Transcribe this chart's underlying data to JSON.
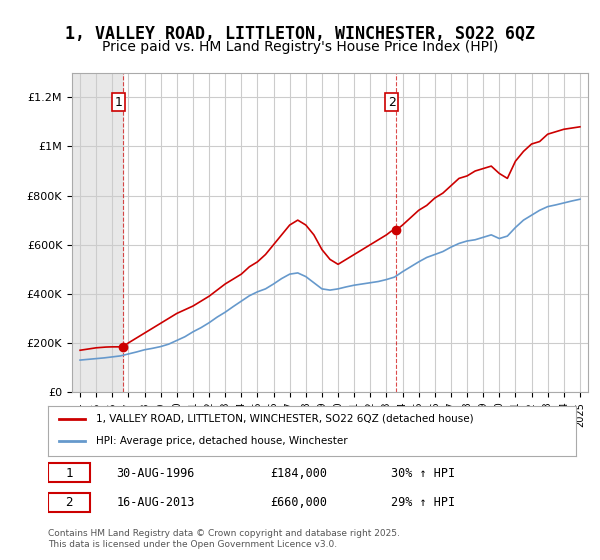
{
  "title": "1, VALLEY ROAD, LITTLETON, WINCHESTER, SO22 6QZ",
  "subtitle": "Price paid vs. HM Land Registry's House Price Index (HPI)",
  "title_fontsize": 12,
  "subtitle_fontsize": 10,
  "background_color": "#ffffff",
  "plot_bg_color": "#ffffff",
  "grid_color": "#cccccc",
  "hatched_region_color": "#e0e0e0",
  "red_line_color": "#cc0000",
  "blue_line_color": "#6699cc",
  "sale1_date": 1996.66,
  "sale1_price": 184000,
  "sale1_label": "1",
  "sale2_date": 2013.62,
  "sale2_price": 660000,
  "sale2_label": "2",
  "ylim": [
    0,
    1300000
  ],
  "xlim": [
    1993.5,
    2025.5
  ],
  "yticks": [
    0,
    200000,
    400000,
    600000,
    800000,
    1000000,
    1200000
  ],
  "ytick_labels": [
    "£0",
    "£200K",
    "£400K",
    "£600K",
    "£800K",
    "£1M",
    "£1.2M"
  ],
  "xticks": [
    1994,
    1995,
    1996,
    1997,
    1998,
    1999,
    2000,
    2001,
    2002,
    2003,
    2004,
    2005,
    2006,
    2007,
    2008,
    2009,
    2010,
    2011,
    2012,
    2013,
    2014,
    2015,
    2016,
    2017,
    2018,
    2019,
    2020,
    2021,
    2022,
    2023,
    2024,
    2025
  ],
  "legend_label_red": "1, VALLEY ROAD, LITTLETON, WINCHESTER, SO22 6QZ (detached house)",
  "legend_label_blue": "HPI: Average price, detached house, Winchester",
  "footnote": "Contains HM Land Registry data © Crown copyright and database right 2025.\nThis data is licensed under the Open Government Licence v3.0.",
  "table_rows": [
    {
      "num": "1",
      "date": "30-AUG-1996",
      "price": "£184,000",
      "hpi": "30% ↑ HPI"
    },
    {
      "num": "2",
      "date": "16-AUG-2013",
      "price": "£660,000",
      "hpi": "29% ↑ HPI"
    }
  ],
  "red_x": [
    1994.0,
    1994.2,
    1994.4,
    1994.6,
    1994.8,
    1995.0,
    1995.2,
    1995.4,
    1995.6,
    1995.8,
    1996.0,
    1996.3,
    1996.5,
    1996.66,
    1997.0,
    1997.5,
    1998.0,
    1998.5,
    1999.0,
    1999.5,
    2000.0,
    2000.5,
    2001.0,
    2001.5,
    2002.0,
    2002.5,
    2003.0,
    2003.5,
    2004.0,
    2004.5,
    2005.0,
    2005.5,
    2006.0,
    2006.5,
    2007.0,
    2007.5,
    2008.0,
    2008.5,
    2009.0,
    2009.5,
    2010.0,
    2010.5,
    2011.0,
    2011.5,
    2012.0,
    2012.5,
    2013.0,
    2013.3,
    2013.62,
    2014.0,
    2014.5,
    2015.0,
    2015.5,
    2016.0,
    2016.5,
    2017.0,
    2017.5,
    2018.0,
    2018.5,
    2019.0,
    2019.5,
    2020.0,
    2020.5,
    2021.0,
    2021.5,
    2022.0,
    2022.5,
    2023.0,
    2023.5,
    2024.0,
    2024.5,
    2025.0
  ],
  "red_y": [
    170000,
    172000,
    174000,
    176000,
    178000,
    180000,
    181000,
    182000,
    183000,
    183500,
    183800,
    183900,
    184000,
    184000,
    200000,
    220000,
    240000,
    260000,
    280000,
    300000,
    320000,
    335000,
    350000,
    370000,
    390000,
    415000,
    440000,
    460000,
    480000,
    510000,
    530000,
    560000,
    600000,
    640000,
    680000,
    700000,
    680000,
    640000,
    580000,
    540000,
    520000,
    540000,
    560000,
    580000,
    600000,
    620000,
    640000,
    655000,
    660000,
    680000,
    710000,
    740000,
    760000,
    790000,
    810000,
    840000,
    870000,
    880000,
    900000,
    910000,
    920000,
    890000,
    870000,
    940000,
    980000,
    1010000,
    1020000,
    1050000,
    1060000,
    1070000,
    1075000,
    1080000
  ],
  "blue_x": [
    1994.0,
    1994.5,
    1995.0,
    1995.5,
    1996.0,
    1996.5,
    1997.0,
    1997.5,
    1998.0,
    1998.5,
    1999.0,
    1999.5,
    2000.0,
    2000.5,
    2001.0,
    2001.5,
    2002.0,
    2002.5,
    2003.0,
    2003.5,
    2004.0,
    2004.5,
    2005.0,
    2005.5,
    2006.0,
    2006.5,
    2007.0,
    2007.5,
    2008.0,
    2008.5,
    2009.0,
    2009.5,
    2010.0,
    2010.5,
    2011.0,
    2011.5,
    2012.0,
    2012.5,
    2013.0,
    2013.5,
    2014.0,
    2014.5,
    2015.0,
    2015.5,
    2016.0,
    2016.5,
    2017.0,
    2017.5,
    2018.0,
    2018.5,
    2019.0,
    2019.5,
    2020.0,
    2020.5,
    2021.0,
    2021.5,
    2022.0,
    2022.5,
    2023.0,
    2023.5,
    2024.0,
    2024.5,
    2025.0
  ],
  "blue_y": [
    130000,
    133000,
    136000,
    139000,
    143000,
    147000,
    155000,
    163000,
    172000,
    178000,
    185000,
    195000,
    210000,
    225000,
    245000,
    262000,
    282000,
    305000,
    325000,
    348000,
    370000,
    392000,
    408000,
    420000,
    440000,
    462000,
    480000,
    485000,
    470000,
    445000,
    420000,
    415000,
    420000,
    428000,
    435000,
    440000,
    445000,
    450000,
    458000,
    468000,
    490000,
    510000,
    530000,
    548000,
    560000,
    572000,
    590000,
    605000,
    615000,
    620000,
    630000,
    640000,
    625000,
    635000,
    670000,
    700000,
    720000,
    740000,
    755000,
    762000,
    770000,
    778000,
    785000
  ]
}
